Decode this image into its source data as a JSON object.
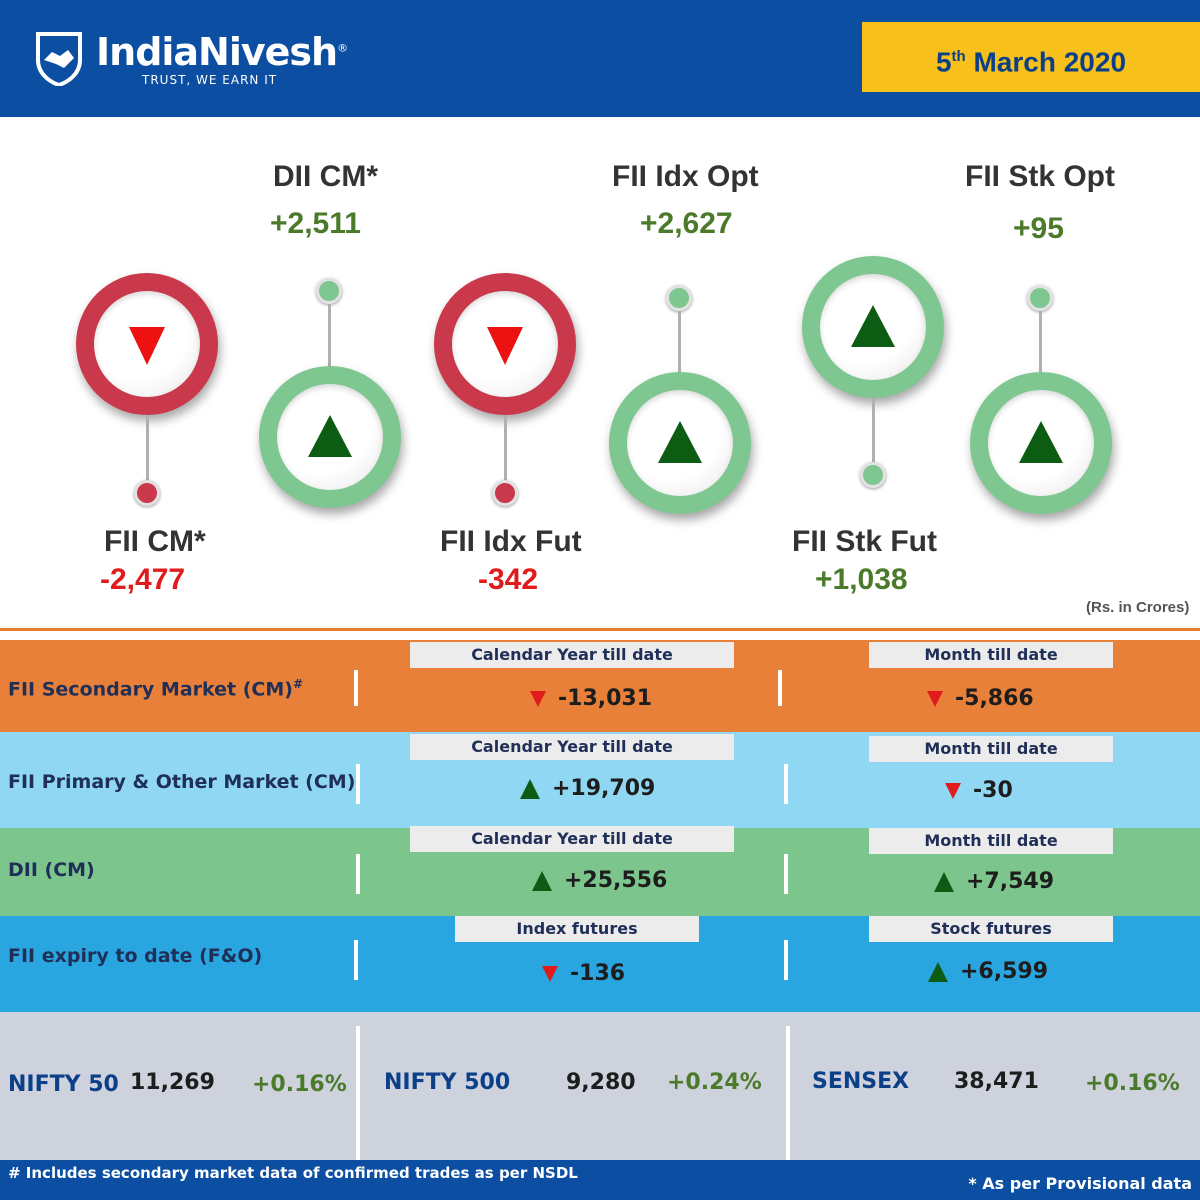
{
  "header": {
    "brand": "IndiaNivesh",
    "registered": "®",
    "tagline": "TRUST, WE EARN IT",
    "date_day": "5",
    "date_suffix": "th",
    "date_rest": "March 2020"
  },
  "metrics": [
    {
      "label": "FII CM*",
      "value": "-2,477",
      "direction": "down"
    },
    {
      "label": "DII CM*",
      "value": "+2,511",
      "direction": "up"
    },
    {
      "label": "FII Idx Fut",
      "value": "-342",
      "direction": "down"
    },
    {
      "label": "FII Idx Opt",
      "value": "+2,627",
      "direction": "up"
    },
    {
      "label": "FII Stk Fut",
      "value": "+1,038",
      "direction": "up"
    },
    {
      "label": "FII Stk Opt",
      "value": "+95",
      "direction": "up"
    }
  ],
  "units": "(Rs. in Crores)",
  "rows": [
    {
      "label": "FII Secondary Market (CM)",
      "label_sup": "#",
      "tag1": "Calendar Year till date",
      "val1": "-13,031",
      "dir1": "down",
      "tag2": "Month till date",
      "val2": "-5,866",
      "dir2": "down",
      "color": "#e8803a"
    },
    {
      "label": "FII Primary & Other  Market (CM)",
      "label_sup": "",
      "tag1": "Calendar Year till date",
      "val1": "+19,709",
      "dir1": "up",
      "tag2": "Month till date",
      "val2": "-30",
      "dir2": "down",
      "color": "#8fd7f3"
    },
    {
      "label": "DII (CM)",
      "label_sup": "",
      "tag1": "Calendar Year till date",
      "val1": "+25,556",
      "dir1": "up",
      "tag2": "Month till date",
      "val2": "+7,549",
      "dir2": "up",
      "color": "#7cc58d"
    },
    {
      "label": "FII expiry to date (F&O)",
      "label_sup": "",
      "tag1": "Index futures",
      "val1": "-136",
      "dir1": "down",
      "tag2": "Stock futures",
      "val2": "+6,599",
      "dir2": "up",
      "color": "#29a6df"
    }
  ],
  "indices": [
    {
      "name": "NIFTY 50",
      "value": "11,269",
      "change": "+0.16%"
    },
    {
      "name": "NIFTY 500",
      "value": "9,280",
      "change": "+0.24%"
    },
    {
      "name": "SENSEX",
      "value": "38,471",
      "change": "+0.16%"
    }
  ],
  "footer": {
    "left": "# Includes secondary market data of confirmed trades as per NSDL",
    "right": "* As per Provisional data"
  },
  "colors": {
    "brand_blue": "#0b4ea2",
    "date_yellow": "#f7c01b",
    "index_gray": "#cdd2dd"
  }
}
